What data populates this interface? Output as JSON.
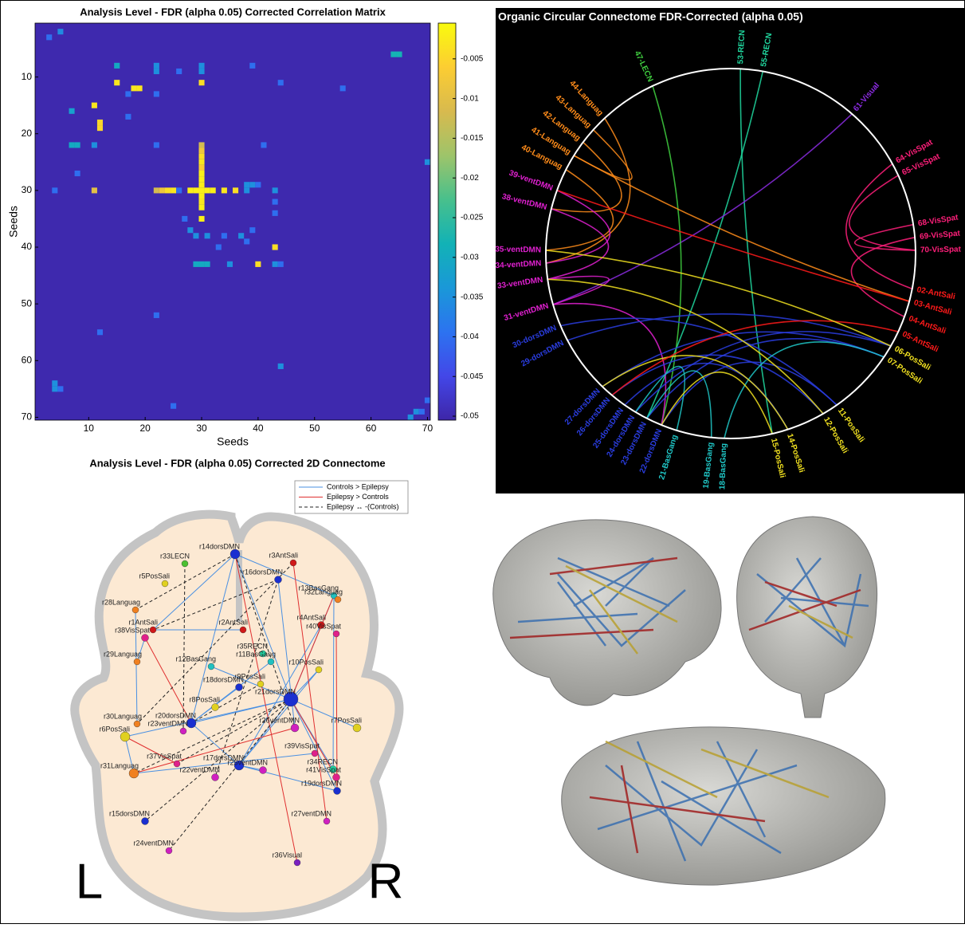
{
  "chart_data": [
    {
      "type": "heatmap",
      "title": "Analysis Level - FDR (alpha 0.05) Corrected Correlation Matrix",
      "x_label": "Seeds",
      "y_label": "Seeds",
      "xlim": [
        0.5,
        70.5
      ],
      "ylim": [
        0.5,
        70.5
      ],
      "y_reversed": true,
      "xticks": [
        10,
        20,
        30,
        40,
        50,
        60,
        70
      ],
      "yticks": [
        10,
        20,
        30,
        40,
        50,
        60,
        70
      ],
      "clim": [
        -0.0505,
        -0.0005
      ],
      "cticks": [
        -0.005,
        -0.01,
        -0.015,
        -0.02,
        -0.025,
        -0.03,
        -0.035,
        -0.04,
        -0.045,
        -0.05
      ],
      "colormap": [
        "#3e26a8",
        "#4347e8",
        "#2c73f0",
        "#1a98d8",
        "#12b2b6",
        "#48c08c",
        "#9ec46a",
        "#d8ba4e",
        "#fccd32",
        "#f9fb0e"
      ],
      "background_value": -0.05,
      "cells": [
        [
          5,
          2,
          -0.036
        ],
        [
          3,
          3,
          -0.04
        ],
        [
          64,
          6,
          -0.028
        ],
        [
          65,
          6,
          -0.028
        ],
        [
          15,
          8,
          -0.03
        ],
        [
          22,
          8,
          -0.035
        ],
        [
          22,
          9,
          -0.035
        ],
        [
          30,
          8,
          -0.035
        ],
        [
          30,
          9,
          -0.035
        ],
        [
          26,
          9,
          -0.04
        ],
        [
          39,
          8,
          -0.04
        ],
        [
          44,
          11,
          -0.04
        ],
        [
          55,
          12,
          -0.04
        ],
        [
          12,
          18,
          -0.005
        ],
        [
          12,
          19,
          -0.005
        ],
        [
          18,
          12,
          -0.003
        ],
        [
          19,
          12,
          -0.003
        ],
        [
          15,
          11,
          -0.003
        ],
        [
          11,
          15,
          -0.003
        ],
        [
          30,
          11,
          -0.004
        ],
        [
          17,
          13,
          -0.04
        ],
        [
          22,
          13,
          -0.04
        ],
        [
          7,
          16,
          -0.032
        ],
        [
          17,
          17,
          -0.04
        ],
        [
          7,
          22,
          -0.03
        ],
        [
          8,
          22,
          -0.03
        ],
        [
          11,
          22,
          -0.035
        ],
        [
          22,
          22,
          -0.04
        ],
        [
          30,
          22,
          -0.012
        ],
        [
          30,
          23,
          -0.008
        ],
        [
          30,
          24,
          -0.004
        ],
        [
          30,
          25,
          -0.003
        ],
        [
          30,
          26,
          -0.006
        ],
        [
          30,
          27,
          -0.002
        ],
        [
          30,
          28,
          -0.002
        ],
        [
          30,
          29,
          -0.002
        ],
        [
          41,
          22,
          -0.04
        ],
        [
          70,
          25,
          -0.035
        ],
        [
          8,
          27,
          -0.04
        ],
        [
          30,
          31,
          -0.002
        ],
        [
          30,
          32,
          -0.003
        ],
        [
          30,
          33,
          -0.002
        ],
        [
          30,
          35,
          -0.002
        ],
        [
          4,
          30,
          -0.04
        ],
        [
          11,
          30,
          -0.01
        ],
        [
          22,
          30,
          -0.012
        ],
        [
          23,
          30,
          -0.008
        ],
        [
          24,
          30,
          -0.004
        ],
        [
          25,
          30,
          -0.003
        ],
        [
          26,
          30,
          -0.04
        ],
        [
          28,
          30,
          -0.002
        ],
        [
          29,
          30,
          -0.002
        ],
        [
          30,
          30,
          -0.002
        ],
        [
          31,
          30,
          -0.002
        ],
        [
          32,
          30,
          -0.002
        ],
        [
          34,
          30,
          -0.003
        ],
        [
          36,
          30,
          -0.004
        ],
        [
          38,
          30,
          -0.035
        ],
        [
          38,
          29,
          -0.035
        ],
        [
          39,
          29,
          -0.035
        ],
        [
          40,
          29,
          -0.04
        ],
        [
          43,
          30,
          -0.035
        ],
        [
          43,
          32,
          -0.04
        ],
        [
          43,
          34,
          -0.04
        ],
        [
          27,
          35,
          -0.04
        ],
        [
          28,
          37,
          -0.035
        ],
        [
          29,
          38,
          -0.035
        ],
        [
          31,
          38,
          -0.035
        ],
        [
          34,
          38,
          -0.04
        ],
        [
          37,
          38,
          -0.035
        ],
        [
          39,
          37,
          -0.04
        ],
        [
          33,
          40,
          -0.04
        ],
        [
          43,
          40,
          -0.004
        ],
        [
          40,
          43,
          -0.004
        ],
        [
          29,
          43,
          -0.03
        ],
        [
          30,
          43,
          -0.03
        ],
        [
          31,
          43,
          -0.03
        ],
        [
          35,
          43,
          -0.035
        ],
        [
          44,
          43,
          -0.04
        ],
        [
          43,
          43,
          -0.035
        ],
        [
          38,
          39,
          -0.04
        ],
        [
          12,
          55,
          -0.04
        ],
        [
          22,
          52,
          -0.04
        ],
        [
          44,
          61,
          -0.035
        ],
        [
          4,
          64,
          -0.035
        ],
        [
          4,
          65,
          -0.035
        ],
        [
          5,
          65,
          -0.04
        ],
        [
          25,
          68,
          -0.04
        ],
        [
          68,
          69,
          -0.035
        ],
        [
          70,
          67,
          -0.04
        ],
        [
          67,
          70,
          -0.035
        ],
        [
          69,
          69,
          -0.04
        ]
      ]
    },
    {
      "type": "chord",
      "title": "Organic Circular Connectome  FDR-Corrected (alpha 0.05)",
      "nodes": [
        {
          "label": "53-RECN",
          "color": "#20d9a0"
        },
        {
          "label": "55-RECN",
          "color": "#20d9a0"
        },
        {
          "label": "61-Visual",
          "color": "#8b2be2"
        },
        {
          "label": "64-VisSpat",
          "color": "#ff1f7a"
        },
        {
          "label": "65-VisSpat",
          "color": "#ff1f7a"
        },
        {
          "label": "68-VisSpat",
          "color": "#ff1f7a"
        },
        {
          "label": "69-VisSpat",
          "color": "#ff1f7a"
        },
        {
          "label": "70-VisSpat",
          "color": "#ff1f7a"
        },
        {
          "label": "02-AntSali",
          "color": "#ff1a1a"
        },
        {
          "label": "03-AntSali",
          "color": "#ff1a1a"
        },
        {
          "label": "04-AntSali",
          "color": "#ff1a1a"
        },
        {
          "label": "05-AntSali",
          "color": "#ff1a1a"
        },
        {
          "label": "06-PosSali",
          "color": "#f0e020"
        },
        {
          "label": "07-PosSali",
          "color": "#f0e020"
        },
        {
          "label": "11-PosSali",
          "color": "#f0e020"
        },
        {
          "label": "12-PosSali",
          "color": "#f0e020"
        },
        {
          "label": "14-PosSali",
          "color": "#f0e020"
        },
        {
          "label": "15-PosSali",
          "color": "#f0e020"
        },
        {
          "label": "18-BasGang",
          "color": "#20c8c8"
        },
        {
          "label": "19-BasGang",
          "color": "#20c8c8"
        },
        {
          "label": "21-BasGang",
          "color": "#20c8c8"
        },
        {
          "label": "22-dorsDMN",
          "color": "#2a3de0"
        },
        {
          "label": "23-dorsDMN",
          "color": "#2a3de0"
        },
        {
          "label": "24-dorsDMN",
          "color": "#2a3de0"
        },
        {
          "label": "25-dorsDMN",
          "color": "#2a3de0"
        },
        {
          "label": "26-dorsDMN",
          "color": "#2a3de0"
        },
        {
          "label": "27-dorsDMN",
          "color": "#2a3de0"
        },
        {
          "label": "29-dorsDMN",
          "color": "#2a3de0"
        },
        {
          "label": "30-dorsDMN",
          "color": "#2a3de0"
        },
        {
          "label": "31-ventDMN",
          "color": "#e020d0"
        },
        {
          "label": "33-ventDMN",
          "color": "#e020d0"
        },
        {
          "label": "34-ventDMN",
          "color": "#e020d0"
        },
        {
          "label": "35-ventDMN",
          "color": "#e020d0"
        },
        {
          "label": "38-ventDMN",
          "color": "#e020d0"
        },
        {
          "label": "39-ventDMN",
          "color": "#e020d0"
        },
        {
          "label": "40-Languag",
          "color": "#ff8c1a"
        },
        {
          "label": "41-Languag",
          "color": "#ff8c1a"
        },
        {
          "label": "42-Languag",
          "color": "#ff8c1a"
        },
        {
          "label": "43-Languag",
          "color": "#ff8c1a"
        },
        {
          "label": "44-Languag",
          "color": "#ff8c1a"
        },
        {
          "label": "47-LECN",
          "color": "#40d040"
        }
      ],
      "links": [
        [
          0,
          17
        ],
        [
          1,
          22
        ],
        [
          2,
          29
        ],
        [
          3,
          8
        ],
        [
          4,
          7
        ],
        [
          5,
          7
        ],
        [
          6,
          10
        ],
        [
          40,
          21
        ],
        [
          39,
          31
        ],
        [
          38,
          36
        ],
        [
          37,
          33
        ],
        [
          35,
          32
        ],
        [
          36,
          9
        ],
        [
          34,
          31
        ],
        [
          33,
          30
        ],
        [
          30,
          29
        ],
        [
          29,
          21
        ],
        [
          28,
          14
        ],
        [
          27,
          12
        ],
        [
          26,
          13
        ],
        [
          25,
          15
        ],
        [
          24,
          16
        ],
        [
          23,
          12
        ],
        [
          22,
          13
        ],
        [
          21,
          14
        ],
        [
          18,
          13
        ],
        [
          19,
          22
        ],
        [
          20,
          23
        ],
        [
          17,
          21
        ],
        [
          16,
          26
        ],
        [
          11,
          25
        ],
        [
          12,
          32
        ],
        [
          15,
          30
        ],
        [
          9,
          34
        ]
      ]
    },
    {
      "type": "network",
      "title": "Analysis Level - FDR (alpha 0.05) Corrected 2D Connectome",
      "legend": [
        {
          "name": "Controls > Epilepsy",
          "color": "#4a90e2",
          "dash": false
        },
        {
          "name": "Epilepsy > Controls",
          "color": "#e03030",
          "dash": false
        },
        {
          "name": "Epilepsy ↔ -(Controls)",
          "color": "#222222",
          "dash": true
        }
      ],
      "side_labels": [
        "L",
        "R"
      ],
      "nodes": [
        {
          "label": "r14dorsDMN",
          "color": "#1a2fd0"
        },
        {
          "label": "r33LECN",
          "color": "#4cc030"
        },
        {
          "label": "r3AntSali",
          "color": "#d01818"
        },
        {
          "label": "r16dorsDMN",
          "color": "#1a2fd0"
        },
        {
          "label": "r5PosSali",
          "color": "#e0d020"
        },
        {
          "label": "r13BasGang",
          "color": "#20c0c0"
        },
        {
          "label": "r32Languag",
          "color": "#f08020"
        },
        {
          "label": "r28Languag",
          "color": "#f08020"
        },
        {
          "label": "r2AntSali",
          "color": "#d01818"
        },
        {
          "label": "r4AntSali",
          "color": "#d01818"
        },
        {
          "label": "r40VisSpat",
          "color": "#e0208a"
        },
        {
          "label": "r1AntSali",
          "color": "#d01818"
        },
        {
          "label": "r38VisSpat",
          "color": "#e0208a"
        },
        {
          "label": "r35RECN",
          "color": "#20d0a0"
        },
        {
          "label": "r11BasGang",
          "color": "#20c0c0"
        },
        {
          "label": "r12BasGang",
          "color": "#20c0c0"
        },
        {
          "label": "r10PosSali",
          "color": "#e0d020"
        },
        {
          "label": "r29Languag",
          "color": "#f08020"
        },
        {
          "label": "r18dorsDMN",
          "color": "#1a2fd0"
        },
        {
          "label": "r9PosSali",
          "color": "#e0d020"
        },
        {
          "label": "r21dorsDMN",
          "color": "#1a2fd0"
        },
        {
          "label": "r8PosSali",
          "color": "#e0d020"
        },
        {
          "label": "r20dorsDMN",
          "color": "#1a2fd0"
        },
        {
          "label": "r23ventDMN",
          "color": "#d020c0"
        },
        {
          "label": "r26ventDMN",
          "color": "#d020c0"
        },
        {
          "label": "r7PosSali",
          "color": "#e0d020"
        },
        {
          "label": "r30Languag",
          "color": "#f08020"
        },
        {
          "label": "r6PosSali",
          "color": "#e0d020"
        },
        {
          "label": "r39VisSpat",
          "color": "#e0208a"
        },
        {
          "label": "r17dorsDMN",
          "color": "#1a2fd0"
        },
        {
          "label": "r25ventDMN",
          "color": "#d020c0"
        },
        {
          "label": "r37VisSpat",
          "color": "#e0208a"
        },
        {
          "label": "r22ventDMN",
          "color": "#d020c0"
        },
        {
          "label": "r34RECN",
          "color": "#20d0a0"
        },
        {
          "label": "r41VisSpat",
          "color": "#e0208a"
        },
        {
          "label": "r31Languag",
          "color": "#f08020"
        },
        {
          "label": "r19dorsDMN",
          "color": "#1a2fd0"
        },
        {
          "label": "r15dorsDMN",
          "color": "#1a2fd0"
        },
        {
          "label": "r27ventDMN",
          "color": "#d020c0"
        },
        {
          "label": "r24ventDMN",
          "color": "#d020c0"
        },
        {
          "label": "r36Visual",
          "color": "#7a20c0"
        }
      ],
      "edges": [
        [
          0,
          20,
          0
        ],
        [
          0,
          22,
          0
        ],
        [
          0,
          11,
          0
        ],
        [
          0,
          5,
          0
        ],
        [
          20,
          27,
          0
        ],
        [
          20,
          22,
          0
        ],
        [
          20,
          29,
          0
        ],
        [
          20,
          33,
          0
        ],
        [
          20,
          36,
          0
        ],
        [
          20,
          25,
          0
        ],
        [
          20,
          16,
          0
        ],
        [
          20,
          5,
          0
        ],
        [
          20,
          15,
          0
        ],
        [
          22,
          29,
          0
        ],
        [
          22,
          18,
          0
        ],
        [
          29,
          36,
          0
        ],
        [
          29,
          30,
          0
        ],
        [
          27,
          35,
          0
        ],
        [
          26,
          7,
          0
        ],
        [
          17,
          12,
          0
        ],
        [
          11,
          8,
          0
        ],
        [
          5,
          33,
          0
        ],
        [
          3,
          24,
          0
        ],
        [
          9,
          29,
          0
        ],
        [
          16,
          29,
          0
        ],
        [
          14,
          22,
          0
        ],
        [
          35,
          28,
          0
        ],
        [
          0,
          40,
          1
        ],
        [
          2,
          38,
          1
        ],
        [
          10,
          36,
          1
        ],
        [
          35,
          24,
          1
        ],
        [
          27,
          31,
          1
        ],
        [
          20,
          34,
          1
        ],
        [
          5,
          20,
          1
        ],
        [
          12,
          22,
          1
        ],
        [
          1,
          23,
          2
        ],
        [
          0,
          7,
          2
        ],
        [
          2,
          26,
          2
        ],
        [
          3,
          11,
          2
        ],
        [
          20,
          37,
          2
        ],
        [
          20,
          35,
          2
        ],
        [
          20,
          39,
          2
        ],
        [
          20,
          31,
          2
        ],
        [
          3,
          32,
          2
        ],
        [
          19,
          22,
          2
        ],
        [
          0,
          24,
          2
        ]
      ]
    }
  ]
}
